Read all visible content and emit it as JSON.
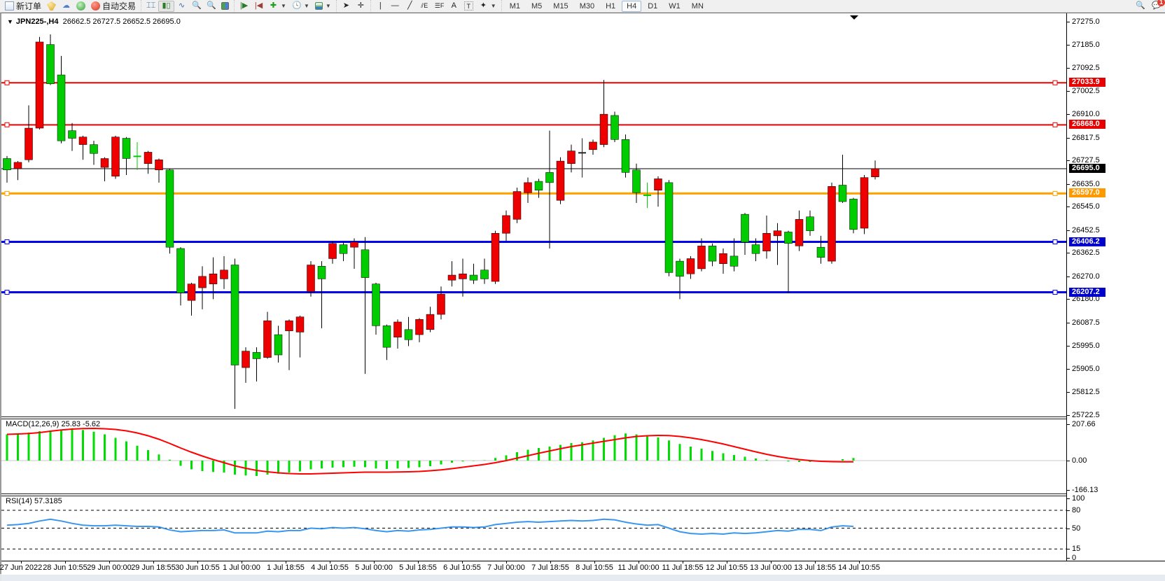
{
  "toolbar": {
    "new_order_label": "新订单",
    "autotrading_label": "自动交易",
    "timeframes": [
      "M1",
      "M5",
      "M15",
      "M30",
      "H1",
      "H4",
      "D1",
      "W1",
      "MN"
    ],
    "active_timeframe": "H4",
    "chat_badge": "1",
    "tool_icons": [
      "new-order",
      "expert-advisors",
      "community",
      "signals",
      "autotrading",
      "bar-chart",
      "candle-chart",
      "line-chart",
      "zoom-in",
      "zoom-out",
      "tile-windows",
      "auto-scroll",
      "chart-shift",
      "new-chart",
      "periodicity",
      "indicators",
      "cursor",
      "crosshair",
      "vertical-line",
      "horizontal-line",
      "trendline",
      "equidistant-channel",
      "fibonacci",
      "text",
      "text-label",
      "arrows",
      "search",
      "chat"
    ]
  },
  "chart": {
    "window_title_symbol": "JPN225-,H4",
    "window_title_ohlc": "26662.5 26727.5 26652.5 26695.0"
  },
  "chart_data": {
    "type": "candlestick",
    "symbol": "JPN225-",
    "timeframe": "H4",
    "title": "JPN225-,H4 26662.5 26727.5 26652.5 26695.0",
    "price_axis_range": [
      25722.5,
      27275.0
    ],
    "price_axis_ticks": [
      27275.0,
      27185.0,
      27092.5,
      27002.5,
      26910.0,
      26817.5,
      26727.5,
      26635.0,
      26545.0,
      26452.5,
      26362.5,
      26270.0,
      26180.0,
      26087.5,
      25995.0,
      25905.0,
      25812.5,
      25722.5
    ],
    "current_price": 26695.0,
    "horizontal_lines": [
      {
        "price": 27033.9,
        "color": "#ee0000",
        "badge": "#e60000",
        "width": 2
      },
      {
        "price": 26868.0,
        "color": "#ee0000",
        "badge": "#e60000",
        "width": 2
      },
      {
        "price": 26597.0,
        "color": "#ffa200",
        "badge": "#ff9900",
        "width": 3
      },
      {
        "price": 26406.2,
        "color": "#0000ee",
        "badge": "#0000cc",
        "width": 3
      },
      {
        "price": 26207.2,
        "color": "#0000ee",
        "badge": "#0000cc",
        "width": 3
      }
    ],
    "colors": {
      "up": "#ee0000",
      "down": "#00cc00",
      "doji": "#00cc00",
      "doji_dark": "#222222",
      "macd_hist": "#00dd00",
      "macd_signal": "#ff0000",
      "rsi_line": "#3a96ee"
    },
    "candles": [
      [
        "d",
        26735,
        26690,
        26745,
        26640
      ],
      [
        "u",
        26720,
        26695,
        26725,
        26650
      ],
      [
        "u",
        26855,
        26730,
        26945,
        26720
      ],
      [
        "u",
        27195,
        26855,
        27215,
        26850
      ],
      [
        "d",
        27185,
        27030,
        27225,
        27025
      ],
      [
        "d",
        27065,
        26805,
        27140,
        26795
      ],
      [
        "d",
        26845,
        26815,
        26875,
        26765
      ],
      [
        "u",
        26820,
        26790,
        26825,
        26730
      ],
      [
        "d",
        26790,
        26755,
        26805,
        26710
      ],
      [
        "u",
        26735,
        26700,
        26740,
        26645
      ],
      [
        "u",
        26820,
        26665,
        26825,
        26655
      ],
      [
        "d",
        26815,
        26735,
        26820,
        26670
      ],
      [
        "x",
        26746,
        26741,
        26800,
        26690
      ],
      [
        "u",
        26760,
        26715,
        26765,
        26675
      ],
      [
        "u",
        26730,
        26690,
        26735,
        26640
      ],
      [
        "d",
        26690,
        26385,
        26695,
        26360
      ],
      [
        "d",
        26380,
        26205,
        26385,
        26155
      ],
      [
        "u",
        26240,
        26175,
        26245,
        26115
      ],
      [
        "u",
        26270,
        26225,
        26310,
        26140
      ],
      [
        "u",
        26280,
        26240,
        26345,
        26180
      ],
      [
        "u",
        26295,
        26260,
        26350,
        26220
      ],
      [
        "d",
        26315,
        25920,
        26340,
        25747
      ],
      [
        "u",
        25975,
        25910,
        25990,
        25850
      ],
      [
        "d",
        25970,
        25945,
        25990,
        25855
      ],
      [
        "u",
        26095,
        25950,
        26130,
        25945
      ],
      [
        "d",
        26040,
        25960,
        26075,
        25930
      ],
      [
        "u",
        26095,
        26055,
        26100,
        25900
      ],
      [
        "u",
        26110,
        26050,
        26115,
        25950
      ],
      [
        "u",
        26315,
        26210,
        26330,
        26190
      ],
      [
        "d",
        26310,
        26260,
        26330,
        26065
      ],
      [
        "u",
        26400,
        26340,
        26410,
        26320
      ],
      [
        "d",
        26395,
        26360,
        26405,
        26330
      ],
      [
        "u",
        26405,
        26385,
        26420,
        26300
      ],
      [
        "d",
        26375,
        26265,
        26425,
        25885
      ],
      [
        "d",
        26240,
        26075,
        26245,
        26040
      ],
      [
        "d",
        26075,
        25990,
        26080,
        25940
      ],
      [
        "u",
        26090,
        26030,
        26100,
        25985
      ],
      [
        "d",
        26060,
        26020,
        26110,
        25995
      ],
      [
        "u",
        26100,
        26040,
        26105,
        26010
      ],
      [
        "u",
        26120,
        26060,
        26150,
        26050
      ],
      [
        "u",
        26200,
        26120,
        26230,
        26100
      ],
      [
        "u",
        26275,
        26255,
        26330,
        26230
      ],
      [
        "u",
        26280,
        26260,
        26340,
        26190
      ],
      [
        "d",
        26275,
        26255,
        26320,
        26240
      ],
      [
        "d",
        26295,
        26260,
        26340,
        26240
      ],
      [
        "u",
        26440,
        26250,
        26450,
        26240
      ],
      [
        "u",
        26510,
        26440,
        26530,
        26410
      ],
      [
        "u",
        26605,
        26495,
        26620,
        26480
      ],
      [
        "u",
        26640,
        26600,
        26660,
        26560
      ],
      [
        "d",
        26645,
        26610,
        26655,
        26580
      ],
      [
        "d",
        26680,
        26640,
        26845,
        26380
      ],
      [
        "u",
        26725,
        26570,
        26740,
        26555
      ],
      [
        "u",
        26765,
        26715,
        26790,
        26680
      ],
      [
        "k",
        26760,
        26755,
        26815,
        26660
      ],
      [
        "u",
        26800,
        26770,
        26810,
        26750
      ],
      [
        "u",
        26910,
        26790,
        27045,
        26780
      ],
      [
        "d",
        26905,
        26810,
        26920,
        26800
      ],
      [
        "d",
        26810,
        26680,
        26830,
        26660
      ],
      [
        "d",
        26690,
        26600,
        26715,
        26560
      ],
      [
        "x",
        26592,
        26588,
        26640,
        26540
      ],
      [
        "u",
        26655,
        26610,
        26665,
        26545
      ],
      [
        "d",
        26640,
        26285,
        26650,
        26270
      ],
      [
        "d",
        26330,
        26270,
        26340,
        26180
      ],
      [
        "u",
        26340,
        26280,
        26350,
        26260
      ],
      [
        "u",
        26390,
        26300,
        26420,
        26290
      ],
      [
        "d",
        26390,
        26330,
        26400,
        26310
      ],
      [
        "u",
        26360,
        26320,
        26380,
        26280
      ],
      [
        "d",
        26350,
        26310,
        26420,
        26290
      ],
      [
        "d",
        26515,
        26405,
        26520,
        26355
      ],
      [
        "d",
        26395,
        26360,
        26420,
        26330
      ],
      [
        "u",
        26440,
        26370,
        26510,
        26340
      ],
      [
        "u",
        26450,
        26430,
        26480,
        26315
      ],
      [
        "d",
        26445,
        26400,
        26450,
        26203
      ],
      [
        "u",
        26495,
        26390,
        26530,
        26370
      ],
      [
        "d",
        26505,
        26450,
        26530,
        26430
      ],
      [
        "d",
        26385,
        26345,
        26430,
        26320
      ],
      [
        "u",
        26625,
        26330,
        26640,
        26320
      ],
      [
        "d",
        26630,
        26565,
        26750,
        26560
      ],
      [
        "d",
        26575,
        26455,
        26580,
        26440
      ],
      [
        "u",
        26660,
        26460,
        26670,
        26437
      ],
      [
        "u",
        26695,
        26662.5,
        26727.5,
        26652.5
      ]
    ],
    "indicators": {
      "macd": {
        "label": "MACD(12,26,9) 25.83 -5.62",
        "axis_ticks": [
          207.66,
          0.0,
          -166.13
        ],
        "axis_tick_labels": [
          "207.66",
          "0.00",
          "-166.13"
        ],
        "histogram": [
          150,
          155,
          160,
          168,
          172,
          178,
          185,
          175,
          165,
          150,
          130,
          110,
          85,
          60,
          35,
          5,
          -30,
          -50,
          -60,
          -65,
          -68,
          -80,
          -85,
          -88,
          -80,
          -75,
          -68,
          -62,
          -50,
          -45,
          -40,
          -38,
          -35,
          -38,
          -45,
          -48,
          -45,
          -42,
          -38,
          -32,
          -22,
          -12,
          -5,
          -2,
          2,
          15,
          30,
          48,
          62,
          72,
          80,
          90,
          100,
          105,
          115,
          130,
          145,
          155,
          150,
          140,
          132,
          115,
          95,
          80,
          68,
          55,
          42,
          32,
          22,
          12,
          5,
          0,
          -5,
          -8,
          -8,
          -6,
          0,
          8,
          15,
          20,
          26
        ],
        "signal": [
          150,
          152,
          155,
          160,
          168,
          175,
          180,
          183,
          184,
          182,
          178,
          170,
          158,
          142,
          122,
          98,
          72,
          48,
          26,
          6,
          -12,
          -30,
          -44,
          -56,
          -64,
          -70,
          -74,
          -76,
          -76,
          -74,
          -72,
          -70,
          -68,
          -66,
          -66,
          -66,
          -65,
          -64,
          -62,
          -58,
          -53,
          -46,
          -38,
          -30,
          -22,
          -12,
          0,
          14,
          28,
          42,
          55,
          68,
          80,
          90,
          100,
          110,
          120,
          130,
          138,
          142,
          144,
          143,
          138,
          130,
          120,
          108,
          95,
          80,
          65,
          50,
          36,
          24,
          14,
          6,
          0,
          -4,
          -6,
          -7,
          -7,
          -6,
          -6
        ]
      },
      "rsi": {
        "label": "RSI(14) 57.3185",
        "axis_ticks": [
          100,
          80,
          50,
          15,
          0
        ],
        "levels": [
          80,
          50,
          15
        ],
        "values": [
          55,
          56,
          58,
          62,
          65,
          62,
          58,
          55,
          54,
          54,
          55,
          54,
          53,
          53,
          52,
          47,
          44,
          45,
          46,
          46,
          47,
          42,
          42,
          42,
          45,
          44,
          46,
          46,
          50,
          49,
          51,
          50,
          51,
          49,
          46,
          44,
          46,
          45,
          47,
          48,
          50,
          52,
          52,
          51,
          52,
          56,
          58,
          60,
          61,
          60,
          61,
          62,
          63,
          62,
          63,
          65,
          64,
          60,
          57,
          55,
          56,
          50,
          44,
          41,
          40,
          41,
          40,
          42,
          41,
          42,
          44,
          46,
          45,
          48,
          48,
          46,
          52,
          54,
          53,
          56,
          57.3
        ]
      }
    },
    "time_axis_labels": [
      "27 Jun 2022",
      "28 Jun 10:55",
      "29 Jun 00:00",
      "29 Jun 18:55",
      "30 Jun 10:55",
      "1 Jul 00:00",
      "1 Jul 18:55",
      "4 Jul 10:55",
      "5 Jul 00:00",
      "5 Jul 18:55",
      "6 Jul 10:55",
      "7 Jul 00:00",
      "7 Jul 18:55",
      "8 Jul 10:55",
      "11 Jul 00:00",
      "11 Jul 18:55",
      "12 Jul 10:55",
      "13 Jul 00:00",
      "13 Jul 18:55",
      "14 Jul 10:55"
    ],
    "legend_position": "none",
    "grid": false
  }
}
